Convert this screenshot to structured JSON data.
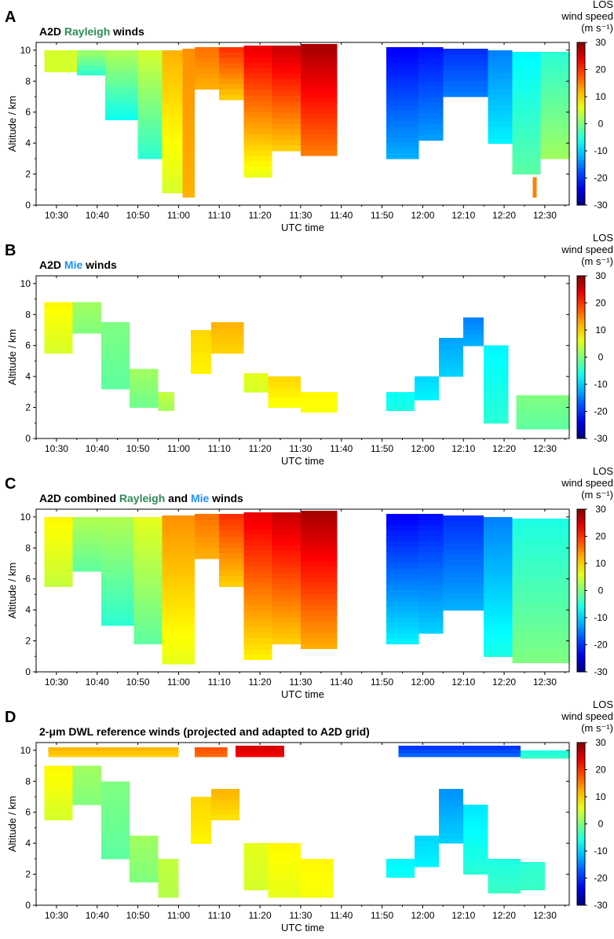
{
  "figure": {
    "colormap_name": "jet",
    "colors": {
      "rayleigh_green": "#2e8b57",
      "mie_blue": "#1e90ff",
      "axis_black": "#000000"
    }
  },
  "chart_data": [
    {
      "type": "heatmap",
      "panel_letter": "A",
      "title_parts": [
        {
          "text": "A2D ",
          "color": "#000000"
        },
        {
          "text": "Rayleigh",
          "color": "#2e8b57"
        },
        {
          "text": " winds",
          "color": "#000000"
        }
      ],
      "xlabel": "UTC time",
      "ylabel": "Altitude / km",
      "x_tick_labels": [
        "10:30",
        "10:40",
        "10:50",
        "11:00",
        "11:10",
        "11:20",
        "11:30",
        "11:40",
        "11:50",
        "12:00",
        "12:10",
        "12:20",
        "12:30"
      ],
      "xlim_minutes": [
        625,
        756
      ],
      "y_ticks": [
        0,
        2,
        4,
        6,
        8,
        10
      ],
      "ylim": [
        0,
        10.5
      ],
      "colorbar": {
        "label_lines": [
          "LOS",
          "wind speed",
          "(m s⁻¹)"
        ],
        "ticks": [
          30,
          20,
          10,
          0,
          -10,
          -20,
          -30
        ],
        "range": [
          -30,
          30
        ]
      },
      "segments": [
        {
          "t0": 627,
          "t1": 635,
          "bottom": 8.6,
          "top": 10.0,
          "v_low": 5,
          "v_high": 5
        },
        {
          "t0": 635,
          "t1": 642,
          "bottom": 8.4,
          "top": 10.0,
          "v_low": -5,
          "v_high": 2
        },
        {
          "t0": 642,
          "t1": 650,
          "bottom": 5.5,
          "top": 10.0,
          "v_low": -7,
          "v_high": 3
        },
        {
          "t0": 650,
          "t1": 656,
          "bottom": 3.0,
          "top": 10.0,
          "v_low": -5,
          "v_high": 5
        },
        {
          "t0": 656,
          "t1": 661,
          "bottom": 0.8,
          "top": 10.0,
          "v_low": 5,
          "v_high": 12
        },
        {
          "t0": 661,
          "t1": 664,
          "bottom": 0.5,
          "top": 10.1,
          "v_low": 12,
          "v_high": 14
        },
        {
          "t0": 664,
          "t1": 670,
          "bottom": 7.5,
          "top": 10.2,
          "v_low": 12,
          "v_high": 16
        },
        {
          "t0": 670,
          "t1": 676,
          "bottom": 6.8,
          "top": 10.2,
          "v_low": 10,
          "v_high": 20
        },
        {
          "t0": 676,
          "t1": 683,
          "bottom": 1.8,
          "top": 10.3,
          "v_low": 6,
          "v_high": 24
        },
        {
          "t0": 683,
          "t1": 690,
          "bottom": 3.5,
          "top": 10.3,
          "v_low": 10,
          "v_high": 26
        },
        {
          "t0": 690,
          "t1": 699,
          "bottom": 3.2,
          "top": 10.4,
          "v_low": 15,
          "v_high": 28
        },
        {
          "t0": 711,
          "t1": 719,
          "bottom": 3.0,
          "top": 10.2,
          "v_low": -12,
          "v_high": -23
        },
        {
          "t0": 719,
          "t1": 725,
          "bottom": 4.2,
          "top": 10.2,
          "v_low": -13,
          "v_high": -22
        },
        {
          "t0": 725,
          "t1": 736,
          "bottom": 7.0,
          "top": 10.1,
          "v_low": -15,
          "v_high": -20
        },
        {
          "t0": 736,
          "t1": 742,
          "bottom": 4.0,
          "top": 10.0,
          "v_low": -8,
          "v_high": -15
        },
        {
          "t0": 742,
          "t1": 749,
          "bottom": 2.0,
          "top": 9.9,
          "v_low": -2,
          "v_high": -8
        },
        {
          "t0": 749,
          "t1": 756,
          "bottom": 3.0,
          "top": 9.9,
          "v_low": 2,
          "v_high": -5
        },
        {
          "t0": 747,
          "t1": 748,
          "bottom": 0.5,
          "top": 1.8,
          "v_low": 15,
          "v_high": 15
        }
      ]
    },
    {
      "type": "heatmap",
      "panel_letter": "B",
      "title_parts": [
        {
          "text": "A2D ",
          "color": "#000000"
        },
        {
          "text": "Mie",
          "color": "#1e90ff"
        },
        {
          "text": " winds",
          "color": "#000000"
        }
      ],
      "xlabel": "UTC time",
      "ylabel": "Altitude / km",
      "x_tick_labels": [
        "10:30",
        "10:40",
        "10:50",
        "11:00",
        "11:10",
        "11:20",
        "11:30",
        "11:40",
        "11:50",
        "12:00",
        "12:10",
        "12:20",
        "12:30"
      ],
      "xlim_minutes": [
        625,
        756
      ],
      "y_ticks": [
        0,
        2,
        4,
        6,
        8,
        10
      ],
      "ylim": [
        0,
        10.5
      ],
      "colorbar": {
        "label_lines": [
          "LOS",
          "wind speed",
          "(m s⁻¹)"
        ],
        "ticks": [
          30,
          20,
          10,
          0,
          -10,
          -20,
          -30
        ],
        "range": [
          -30,
          30
        ]
      },
      "segments": [
        {
          "t0": 627,
          "t1": 634,
          "bottom": 5.5,
          "top": 8.8,
          "v_low": 5,
          "v_high": 8
        },
        {
          "t0": 634,
          "t1": 641,
          "bottom": 6.8,
          "top": 8.8,
          "v_low": 0,
          "v_high": 2
        },
        {
          "t0": 641,
          "t1": 648,
          "bottom": 3.2,
          "top": 7.5,
          "v_low": -2,
          "v_high": 0
        },
        {
          "t0": 648,
          "t1": 655,
          "bottom": 2.0,
          "top": 4.5,
          "v_low": -1,
          "v_high": 2
        },
        {
          "t0": 655,
          "t1": 659,
          "bottom": 1.8,
          "top": 3.0,
          "v_low": 2,
          "v_high": 4
        },
        {
          "t0": 663,
          "t1": 668,
          "bottom": 4.2,
          "top": 7.0,
          "v_low": 8,
          "v_high": 10
        },
        {
          "t0": 668,
          "t1": 676,
          "bottom": 5.5,
          "top": 7.5,
          "v_low": 10,
          "v_high": 12
        },
        {
          "t0": 676,
          "t1": 682,
          "bottom": 3.0,
          "top": 4.2,
          "v_low": 5,
          "v_high": 6
        },
        {
          "t0": 682,
          "t1": 690,
          "bottom": 2.0,
          "top": 4.0,
          "v_low": 7,
          "v_high": 10
        },
        {
          "t0": 690,
          "t1": 699,
          "bottom": 1.7,
          "top": 3.0,
          "v_low": 7,
          "v_high": 8
        },
        {
          "t0": 711,
          "t1": 718,
          "bottom": 1.8,
          "top": 3.0,
          "v_low": -6,
          "v_high": -7
        },
        {
          "t0": 718,
          "t1": 724,
          "bottom": 2.5,
          "top": 4.0,
          "v_low": -8,
          "v_high": -10
        },
        {
          "t0": 724,
          "t1": 730,
          "bottom": 4.0,
          "top": 6.5,
          "v_low": -10,
          "v_high": -13
        },
        {
          "t0": 730,
          "t1": 735,
          "bottom": 6.0,
          "top": 7.8,
          "v_low": -12,
          "v_high": -15
        },
        {
          "t0": 735,
          "t1": 741,
          "bottom": 1.0,
          "top": 6.0,
          "v_low": -5,
          "v_high": -8
        },
        {
          "t0": 743,
          "t1": 756,
          "bottom": 0.6,
          "top": 2.8,
          "v_low": -2,
          "v_high": 0
        }
      ]
    },
    {
      "type": "heatmap",
      "panel_letter": "C",
      "title_parts": [
        {
          "text": "A2D combined ",
          "color": "#000000"
        },
        {
          "text": "Rayleigh",
          "color": "#2e8b57"
        },
        {
          "text": " and ",
          "color": "#000000"
        },
        {
          "text": "Mie",
          "color": "#1e90ff"
        },
        {
          "text": " winds",
          "color": "#000000"
        }
      ],
      "xlabel": "UTC time",
      "ylabel": "Altitude / km",
      "x_tick_labels": [
        "10:30",
        "10:40",
        "10:50",
        "11:00",
        "11:10",
        "11:20",
        "11:30",
        "11:40",
        "11:50",
        "12:00",
        "12:10",
        "12:20",
        "12:30"
      ],
      "xlim_minutes": [
        625,
        756
      ],
      "y_ticks": [
        0,
        2,
        4,
        6,
        8,
        10
      ],
      "ylim": [
        0,
        10.5
      ],
      "colorbar": {
        "label_lines": [
          "LOS",
          "wind speed",
          "(m s⁻¹)"
        ],
        "ticks": [
          30,
          20,
          10,
          0,
          -10,
          -20,
          -30
        ],
        "range": [
          -30,
          30
        ]
      },
      "segments": [
        {
          "t0": 627,
          "t1": 634,
          "bottom": 5.5,
          "top": 10.0,
          "v_low": 4,
          "v_high": 8
        },
        {
          "t0": 634,
          "t1": 641,
          "bottom": 6.5,
          "top": 10.0,
          "v_low": -2,
          "v_high": 3
        },
        {
          "t0": 641,
          "t1": 649,
          "bottom": 3.0,
          "top": 10.0,
          "v_low": -5,
          "v_high": 3
        },
        {
          "t0": 649,
          "t1": 656,
          "bottom": 1.8,
          "top": 10.0,
          "v_low": -2,
          "v_high": 6
        },
        {
          "t0": 656,
          "t1": 664,
          "bottom": 0.5,
          "top": 10.1,
          "v_low": 6,
          "v_high": 14
        },
        {
          "t0": 664,
          "t1": 670,
          "bottom": 7.3,
          "top": 10.2,
          "v_low": 12,
          "v_high": 16
        },
        {
          "t0": 670,
          "t1": 676,
          "bottom": 5.5,
          "top": 10.2,
          "v_low": 10,
          "v_high": 20
        },
        {
          "t0": 676,
          "t1": 683,
          "bottom": 0.8,
          "top": 10.3,
          "v_low": 8,
          "v_high": 24
        },
        {
          "t0": 683,
          "t1": 690,
          "bottom": 1.8,
          "top": 10.3,
          "v_low": 10,
          "v_high": 26
        },
        {
          "t0": 690,
          "t1": 699,
          "bottom": 1.5,
          "top": 10.4,
          "v_low": 12,
          "v_high": 28
        },
        {
          "t0": 711,
          "t1": 719,
          "bottom": 1.8,
          "top": 10.2,
          "v_low": -8,
          "v_high": -23
        },
        {
          "t0": 719,
          "t1": 725,
          "bottom": 2.5,
          "top": 10.2,
          "v_low": -10,
          "v_high": -22
        },
        {
          "t0": 725,
          "t1": 735,
          "bottom": 4.0,
          "top": 10.1,
          "v_low": -12,
          "v_high": -20
        },
        {
          "t0": 735,
          "t1": 742,
          "bottom": 1.0,
          "top": 10.0,
          "v_low": -6,
          "v_high": -15
        },
        {
          "t0": 742,
          "t1": 756,
          "bottom": 0.6,
          "top": 9.9,
          "v_low": 0,
          "v_high": -6
        }
      ]
    },
    {
      "type": "heatmap",
      "panel_letter": "D",
      "title_parts": [
        {
          "text": "2-μm DWL reference winds (projected and adapted to A2D grid)",
          "color": "#000000"
        }
      ],
      "xlabel": "UTC time",
      "ylabel": "Altitude / km",
      "x_tick_labels": [
        "10:30",
        "10:40",
        "10:50",
        "11:00",
        "11:10",
        "11:20",
        "11:30",
        "11:40",
        "11:50",
        "12:00",
        "12:10",
        "12:20",
        "12:30"
      ],
      "xlim_minutes": [
        625,
        756
      ],
      "y_ticks": [
        0,
        2,
        4,
        6,
        8,
        10
      ],
      "ylim": [
        0,
        10.5
      ],
      "colorbar": {
        "label_lines": [
          "LOS",
          "wind speed",
          "(m s⁻¹)"
        ],
        "ticks": [
          30,
          20,
          10,
          0,
          -10,
          -20,
          -30
        ],
        "range": [
          -30,
          30
        ]
      },
      "segments": [
        {
          "t0": 627,
          "t1": 634,
          "bottom": 5.5,
          "top": 9.0,
          "v_low": 5,
          "v_high": 8
        },
        {
          "t0": 634,
          "t1": 641,
          "bottom": 6.5,
          "top": 9.0,
          "v_low": 0,
          "v_high": 2
        },
        {
          "t0": 641,
          "t1": 648,
          "bottom": 3.0,
          "top": 8.0,
          "v_low": -2,
          "v_high": 0
        },
        {
          "t0": 648,
          "t1": 655,
          "bottom": 1.5,
          "top": 4.5,
          "v_low": 0,
          "v_high": 2
        },
        {
          "t0": 655,
          "t1": 660,
          "bottom": 0.5,
          "top": 3.0,
          "v_low": 3,
          "v_high": 4
        },
        {
          "t0": 663,
          "t1": 668,
          "bottom": 4.0,
          "top": 7.0,
          "v_low": 8,
          "v_high": 10
        },
        {
          "t0": 668,
          "t1": 675,
          "bottom": 5.5,
          "top": 7.5,
          "v_low": 9,
          "v_high": 12
        },
        {
          "t0": 676,
          "t1": 682,
          "bottom": 1.0,
          "top": 4.0,
          "v_low": 5,
          "v_high": 6
        },
        {
          "t0": 682,
          "t1": 690,
          "bottom": 0.5,
          "top": 4.0,
          "v_low": 6,
          "v_high": 8
        },
        {
          "t0": 690,
          "t1": 698,
          "bottom": 0.5,
          "top": 3.0,
          "v_low": 7,
          "v_high": 8
        },
        {
          "t0": 711,
          "t1": 718,
          "bottom": 1.8,
          "top": 3.0,
          "v_low": -7,
          "v_high": -8
        },
        {
          "t0": 718,
          "t1": 724,
          "bottom": 2.5,
          "top": 4.5,
          "v_low": -8,
          "v_high": -10
        },
        {
          "t0": 724,
          "t1": 730,
          "bottom": 4.0,
          "top": 7.5,
          "v_low": -10,
          "v_high": -14
        },
        {
          "t0": 730,
          "t1": 736,
          "bottom": 2.0,
          "top": 6.5,
          "v_low": -5,
          "v_high": -9
        },
        {
          "t0": 736,
          "t1": 744,
          "bottom": 0.8,
          "top": 3.0,
          "v_low": -4,
          "v_high": -6
        },
        {
          "t0": 744,
          "t1": 750,
          "bottom": 1.0,
          "top": 2.8,
          "v_low": -4,
          "v_high": -5
        },
        {
          "t0": 628,
          "t1": 660,
          "bottom": 9.6,
          "top": 10.2,
          "v_low": 10,
          "v_high": 12
        },
        {
          "t0": 664,
          "t1": 672,
          "bottom": 9.6,
          "top": 10.2,
          "v_low": 16,
          "v_high": 18
        },
        {
          "t0": 674,
          "t1": 686,
          "bottom": 9.6,
          "top": 10.3,
          "v_low": 23,
          "v_high": 25
        },
        {
          "t0": 714,
          "t1": 744,
          "bottom": 9.6,
          "top": 10.3,
          "v_low": -16,
          "v_high": -20
        },
        {
          "t0": 744,
          "t1": 756,
          "bottom": 9.5,
          "top": 10.0,
          "v_low": -4,
          "v_high": -6
        }
      ]
    }
  ]
}
